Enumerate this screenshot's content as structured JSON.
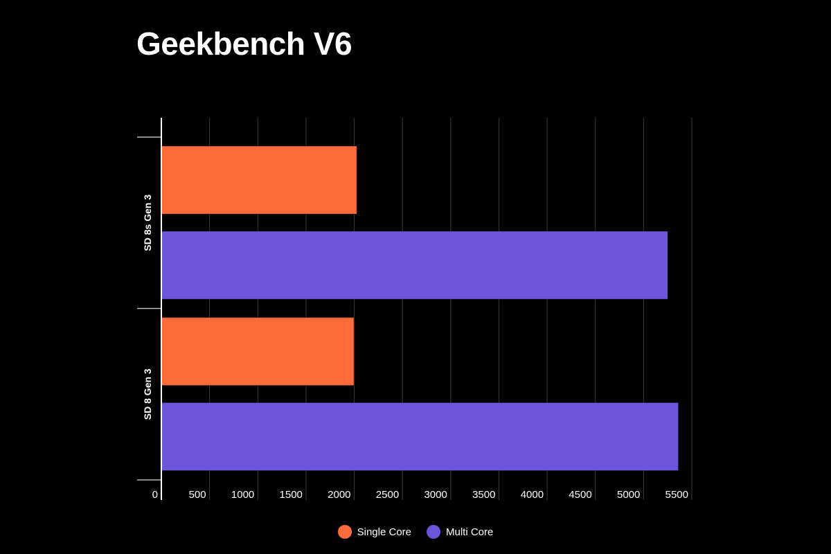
{
  "chart_data": {
    "type": "bar",
    "orientation": "horizontal",
    "title": "Geekbench V6",
    "categories": [
      "SD 8s Gen 3",
      "SD 8 Gen 3"
    ],
    "series": [
      {
        "name": "Single Core",
        "color": "#ff6b3b",
        "values": [
          2025,
          1995
        ]
      },
      {
        "name": "Multi Core",
        "color": "#6c55d9",
        "values": [
          5250,
          5360
        ]
      }
    ],
    "xlim": [
      0,
      5500
    ],
    "xticks": [
      0,
      500,
      1000,
      1500,
      2000,
      2500,
      3000,
      3500,
      4000,
      4500,
      5000,
      5500
    ],
    "grid": true,
    "legend_position": "bottom",
    "xlabel": "",
    "ylabel": ""
  }
}
